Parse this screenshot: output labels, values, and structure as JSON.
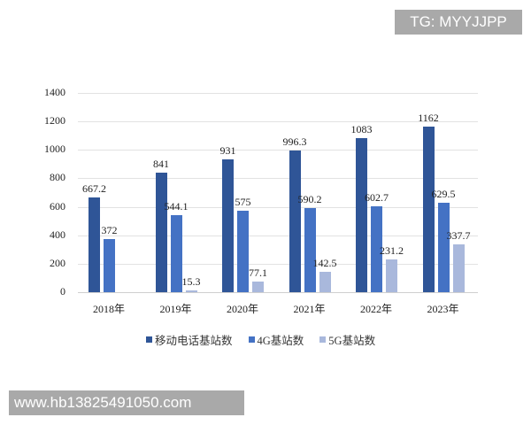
{
  "watermark_top": "TG: MYYJJPP",
  "watermark_bottom": "www.hb13825491050.com",
  "colors": {
    "mobile": "#2f5597",
    "g4": "#4472c4",
    "g5": "#a9b8dc"
  },
  "chart_data": {
    "type": "bar",
    "title": "",
    "xlabel": "",
    "ylabel": "",
    "ylim": [
      0,
      1400
    ],
    "yticks": [
      0,
      200,
      400,
      600,
      800,
      1000,
      1200,
      1400
    ],
    "grid": true,
    "legend_position": "bottom",
    "categories": [
      "2018年",
      "2019年",
      "2020年",
      "2021年",
      "2022年",
      "2023年"
    ],
    "series": [
      {
        "name": "移动电话基站数",
        "values": [
          667.2,
          841,
          931,
          996.3,
          1083,
          1162
        ]
      },
      {
        "name": "4G基站数",
        "values": [
          372,
          544.1,
          575,
          590.2,
          602.7,
          629.5
        ]
      },
      {
        "name": "5G基站数",
        "values": [
          null,
          15.3,
          77.1,
          142.5,
          231.2,
          337.7
        ]
      }
    ]
  }
}
